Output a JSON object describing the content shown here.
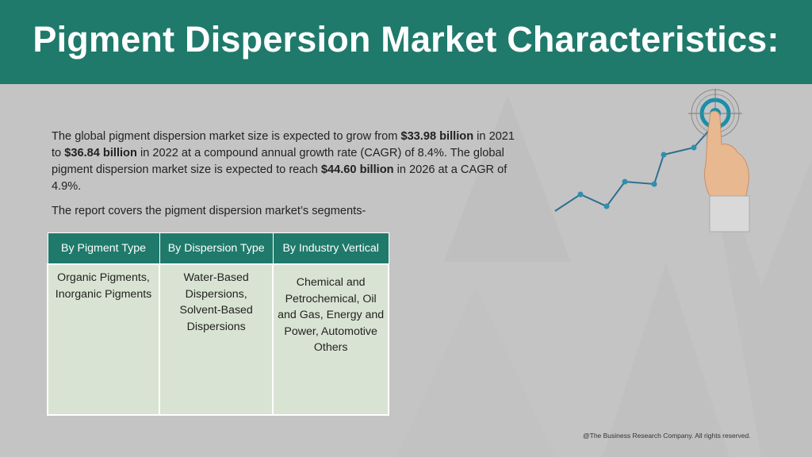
{
  "header": {
    "title": "Pigment Dispersion Market Characteristics:"
  },
  "intro": {
    "p1_a": "The global pigment dispersion market size is expected to grow from ",
    "value_2021": "$33.98 billion",
    "p1_b": " in 2021 to ",
    "value_2022": "$36.84 billion",
    "p1_c": " in 2022 at a compound annual growth rate (CAGR) of 8.4%. The global pigment dispersion market size is expected to reach ",
    "value_2026": "$44.60 billion",
    "p1_d": " in 2026 at a CAGR of 4.9%.",
    "segments_line": "The report covers the pigment dispersion market’s segments-"
  },
  "table": {
    "headers": [
      "By Pigment Type",
      "By Dispersion Type",
      "By Industry Vertical"
    ],
    "cells": [
      "Organic Pigments, Inorganic Pigments",
      "Water-Based Dispersions, Solvent-Based Dispersions",
      "Chemical and Petrochemical, Oil and Gas, Energy and Power, Automotive Others"
    ]
  },
  "footer": {
    "copyright": "@The Business Research Company. All rights reserved."
  },
  "colors": {
    "accent": "#1f7a6b",
    "cell_bg": "#d9e3d3",
    "background": "#c4c4c4"
  },
  "icons": [
    "target-icon",
    "growth-line-icon",
    "pointing-hand-icon"
  ]
}
